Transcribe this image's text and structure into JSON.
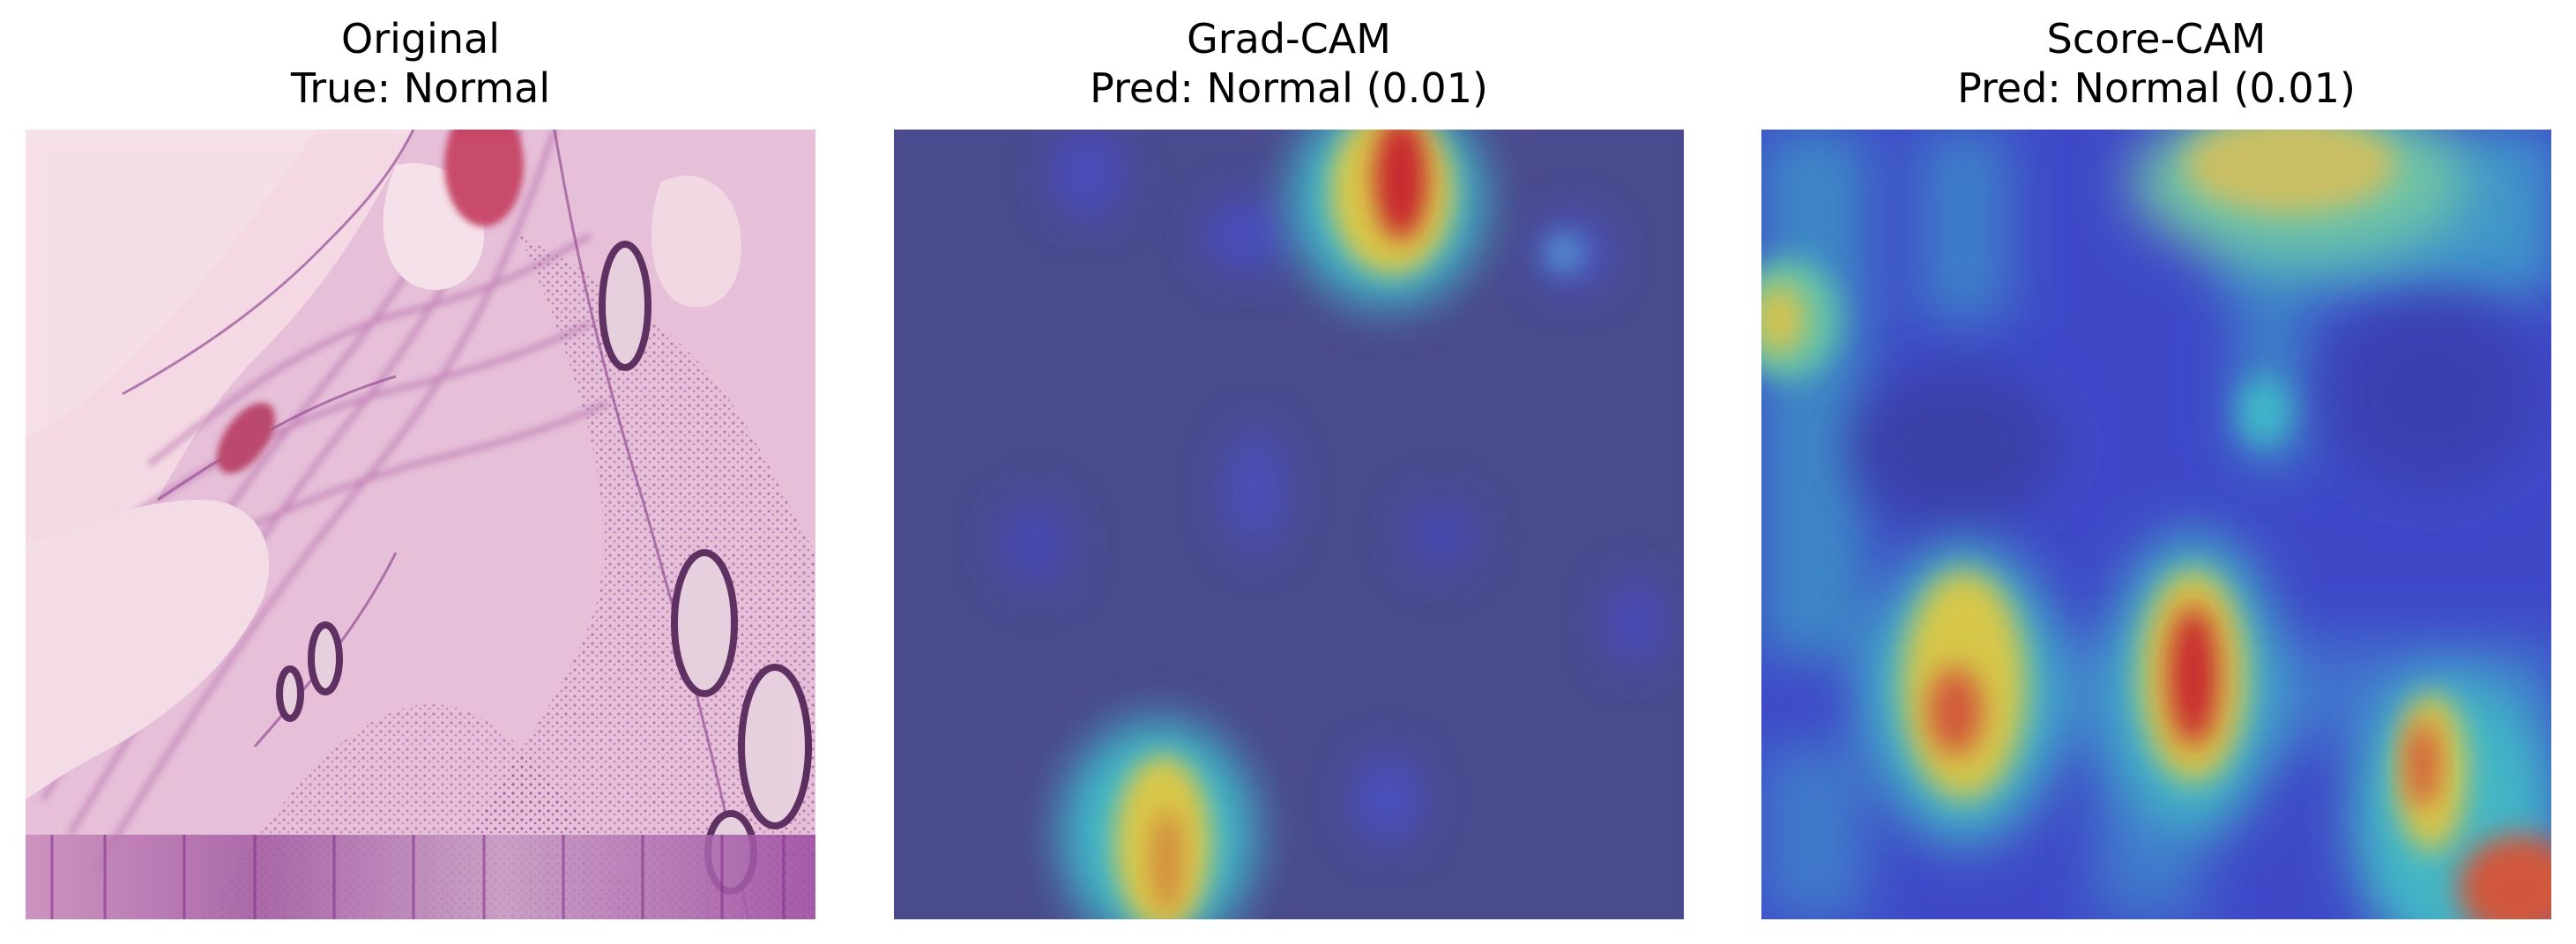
{
  "panels": [
    {
      "title": "Original",
      "subtitle": "True: Normal",
      "image": "histology-tissue-section"
    },
    {
      "title": "Grad-CAM",
      "subtitle": "Pred: Normal (0.01)",
      "image": "gradcam-heatmap-overlay"
    },
    {
      "title": "Score-CAM",
      "subtitle": "Pred: Normal (0.01)",
      "image": "scorecam-heatmap-overlay"
    }
  ],
  "colors": {
    "heatmap_low": "#3a3fb8",
    "heatmap_mid_low": "#36b3c9",
    "heatmap_mid": "#d9c84a",
    "heatmap_high": "#c8282d",
    "tissue_pink": "#e7c1d6",
    "tissue_purple": "#8b3f8f",
    "background_pink": "#f6dde6"
  }
}
